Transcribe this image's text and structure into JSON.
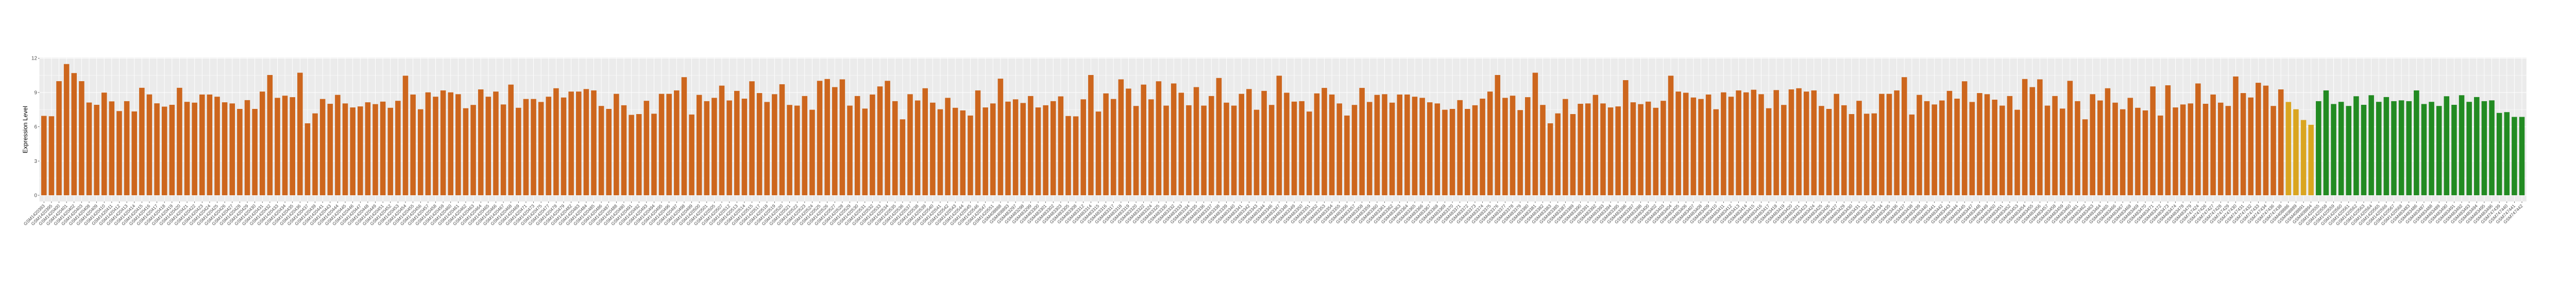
{
  "chart_data": {
    "type": "bar",
    "title": "",
    "xlabel": "",
    "ylabel": "Expression Level",
    "ylim": [
      -0.55,
      12.06
    ],
    "y_ticks": [
      "0",
      "3",
      "6",
      "9",
      "12"
    ],
    "y_tick_values": [
      0,
      3,
      6,
      9,
      12
    ],
    "y_minor_values": [
      1.5,
      4.5,
      7.5,
      10.5
    ],
    "grid": true,
    "panel_background": "#EBEBEB",
    "legend": "none",
    "groups": [
      {
        "color": "#CD661D",
        "categories": [
          "GSM1420393",
          "GSM1420395",
          "GSM1420400",
          "GSM1420401",
          "GSM1420402",
          "GSM1420403",
          "GSM1420408",
          "GSM1420409",
          "GSM1420410",
          "GSM1420411",
          "GSM1420412",
          "GSM1420413",
          "GSM1420414",
          "GSM1420415",
          "GSM1420416",
          "GSM1420417",
          "GSM1420418",
          "GSM1420419",
          "GSM1420420",
          "GSM1420421",
          "GSM1420422",
          "GSM1420423",
          "GSM1420424",
          "GSM1420425",
          "GSM1420426",
          "GSM1420427",
          "GSM1420428",
          "GSM1420429",
          "GSM1420430",
          "GSM1420431",
          "GSM1420432",
          "GSM1420433",
          "GSM1420434",
          "GSM1420435",
          "GSM1420436",
          "GSM1420437",
          "GSM1420439",
          "GSM1420441",
          "GSM1420443",
          "GSM1420444",
          "GSM1420445",
          "GSM1420446",
          "GSM1420447",
          "GSM1420448",
          "GSM1420449",
          "GSM1420451",
          "GSM1420452",
          "GSM1420453",
          "GSM1420454",
          "GSM1420455",
          "GSM1420456",
          "GSM1420457",
          "GSM1420458",
          "GSM1420459",
          "GSM1420460",
          "GSM1420461",
          "GSM1420462",
          "GSM1420463",
          "GSM1420464",
          "GSM1420465",
          "GSM1420466",
          "GSM1420467",
          "GSM1420468",
          "GSM1420469",
          "GSM1420471",
          "GSM1420473",
          "GSM1420475",
          "GSM1420477",
          "GSM1420478",
          "GSM1420479",
          "GSM1420482",
          "GSM1420483",
          "GSM1420484",
          "GSM1420485",
          "GSM1420486",
          "GSM1420487",
          "GSM1420488",
          "GSM1420490",
          "GSM1420491",
          "GSM1420492",
          "GSM1420493",
          "GSM1420494",
          "GSM1420495",
          "GSM1420496",
          "GSM1420497",
          "GSM1420498",
          "GSM1420499",
          "GSM1420500",
          "GSM1420501",
          "GSM1420505",
          "GSM1420507",
          "GSM1420512",
          "GSM1420513",
          "GSM1420514",
          "GSM1420515",
          "GSM1420517",
          "GSM1420518",
          "GSM1420519",
          "GSM1420520",
          "GSM1420521",
          "GSM1420522",
          "GSM1420523",
          "GSM1420524",
          "GSM1420525",
          "GSM1420526",
          "GSM1420527",
          "GSM1420528",
          "GSM1420529",
          "GSM1420530",
          "GSM1420531",
          "GSM1420532",
          "GSM1420533",
          "GSM1420534",
          "GSM1420535",
          "GSM1420536",
          "GSM1420537",
          "GSM1420538",
          "GSM1420539",
          "GSM1420540",
          "GSM1420541",
          "GSM1420542",
          "GSM1420543",
          "GSM1420544",
          "GSM1420545",
          "GSM1420546",
          "GSM1420547",
          "GSM1420551",
          "GSM408888",
          "GSM408893",
          "GSM483297",
          "GSM483298",
          "GSM483299",
          "GSM483300",
          "GSM483301",
          "GSM483302",
          "GSM483303",
          "GSM483305",
          "GSM483308",
          "GSM483312",
          "GSM483314",
          "GSM483315",
          "GSM483316",
          "GSM483317",
          "GSM483318",
          "GSM483319",
          "GSM483320",
          "GSM483322",
          "GSM483324",
          "GSM483325",
          "GSM483330",
          "GSM483332",
          "GSM483333",
          "GSM483334",
          "GSM483335",
          "GSM483336",
          "GSM483337",
          "GSM483338",
          "GSM483339",
          "GSM483340",
          "GSM483341",
          "GSM483342",
          "GSM483343",
          "GSM483344",
          "GSM483346",
          "GSM483347",
          "GSM483348",
          "GSM483349",
          "GSM483350",
          "GSM483351",
          "GSM483352",
          "GSM483353",
          "GSM483354",
          "GSM483355",
          "GSM483356",
          "GSM483357",
          "GSM483358",
          "GSM483359",
          "GSM483360",
          "GSM483361",
          "GSM483362",
          "GSM483363",
          "GSM483364",
          "GSM483365",
          "GSM483366",
          "GSM483367",
          "GSM483368",
          "GSM483369",
          "GSM483370",
          "GSM483371",
          "GSM483372",
          "GSM483373",
          "GSM483374",
          "GSM483375",
          "GSM483376",
          "GSM483377",
          "GSM483378",
          "GSM483379",
          "GSM483380",
          "GSM483381",
          "GSM483382",
          "GSM483383",
          "GSM483385",
          "GSM483387",
          "GSM483389",
          "GSM483390",
          "GSM483391",
          "GSM483392",
          "GSM483393",
          "GSM483394",
          "GSM483395",
          "GSM483396",
          "GSM483397",
          "GSM483398",
          "GSM483400",
          "GSM483402",
          "GSM483403",
          "GSM483404",
          "GSM483405",
          "GSM483406",
          "GSM483407",
          "GSM483408",
          "GSM483409",
          "GSM483410",
          "GSM483411",
          "GSM483412",
          "GSM483413",
          "GSM483414",
          "GSM483415",
          "GSM483416",
          "GSM483417",
          "GSM483418",
          "GSM483419",
          "GSM483420",
          "GSM483421",
          "GSM483423",
          "GSM483424",
          "GSM483425",
          "GSM483426",
          "GSM483427",
          "GSM483429",
          "GSM483430",
          "GSM483431",
          "GSM483432",
          "GSM483433",
          "GSM483434",
          "GSM483435",
          "GSM483436",
          "GSM483437",
          "GSM483438",
          "GSM483439",
          "GSM483440",
          "GSM483441",
          "GSM483442",
          "GSM483443",
          "GSM483444",
          "GSM483445",
          "GSM483447",
          "GSM483448",
          "GSM483449",
          "GSM483450",
          "GSM483451",
          "GSM483452",
          "GSM483453",
          "GSM483454",
          "GSM483455",
          "GSM483456",
          "GSM483457",
          "GSM483458",
          "GSM483459",
          "GSM483460",
          "GSM483461",
          "GSM483462",
          "GSM483463",
          "GSM483464",
          "GSM483465",
          "GSM483466",
          "GSM483467",
          "GSM483468",
          "GSM483469",
          "GSM483470",
          "GSM483471",
          "GSM483472",
          "GSM483473",
          "GSM483474",
          "GSM483478",
          "GSM483479",
          "GSM747424",
          "GSM747426",
          "GSM747427",
          "GSM747428",
          "GSM747429",
          "GSM747430",
          "GSM747431",
          "GSM747432",
          "GSM747433",
          "GSM747434",
          "GSM747436",
          "GSM747438"
        ],
        "values": [
          6.95,
          6.92,
          9.99,
          11.49,
          10.7,
          9.99,
          8.12,
          7.92,
          8.99,
          8.22,
          7.37,
          8.24,
          7.34,
          9.41,
          8.83,
          8.05,
          7.76,
          7.92,
          9.41,
          8.18,
          8.11,
          8.82,
          8.82,
          8.63,
          8.14,
          8.04,
          7.56,
          8.33,
          7.56,
          9.08,
          10.53,
          8.53,
          8.72,
          8.59,
          10.73,
          6.3,
          7.17,
          8.43,
          8.01,
          8.79,
          8.04,
          7.69,
          7.78,
          8.14,
          7.98,
          8.2,
          7.66,
          8.27,
          10.47,
          8.82,
          7.53,
          9.01,
          8.63,
          9.18,
          9.01,
          8.85,
          7.62,
          7.91,
          9.27,
          8.63,
          9.08,
          7.95,
          9.69,
          7.66,
          8.43,
          8.43,
          8.17,
          8.63,
          9.37,
          8.56,
          9.08,
          9.08,
          9.3,
          9.18,
          7.82,
          7.56,
          8.88,
          7.88,
          7.04,
          7.11,
          8.27,
          7.14,
          8.88,
          8.88,
          9.18,
          10.34,
          7.07,
          8.79,
          8.24,
          8.53,
          9.6,
          8.3,
          9.14,
          8.46,
          9.98,
          8.95,
          8.17,
          8.85,
          9.72,
          7.91,
          7.85,
          8.69,
          7.49,
          10.02,
          10.18,
          9.47,
          10.15,
          7.85,
          8.69,
          7.59,
          8.82,
          9.53,
          10.02,
          8.24,
          6.65,
          8.85,
          8.3,
          9.37,
          8.11,
          7.53,
          8.53,
          7.66,
          7.43,
          6.98,
          9.18,
          7.69,
          8.04,
          10.21,
          8.2,
          8.4,
          8.08,
          8.69,
          7.69,
          7.88,
          8.24,
          8.66,
          6.94,
          6.91,
          8.4,
          10.53,
          7.33,
          8.92,
          8.43,
          10.15,
          9.34,
          7.82,
          9.69,
          8.4,
          9.98,
          7.85,
          9.79,
          8.98,
          7.88,
          9.47,
          7.85,
          8.69,
          10.27,
          8.11,
          7.85,
          8.88,
          9.3,
          7.49,
          9.14,
          7.91,
          10.47,
          8.98,
          8.2,
          8.24,
          7.33,
          8.92,
          9.4,
          8.82,
          8.04,
          6.98,
          7.91,
          9.4,
          8.17,
          8.79,
          8.85,
          8.11,
          8.82,
          8.82,
          8.63,
          8.53,
          8.14,
          8.04,
          7.49,
          7.56,
          8.33,
          7.56,
          7.88,
          8.46,
          9.08,
          10.53,
          8.53,
          8.72,
          7.46,
          8.59,
          10.73,
          7.91,
          6.3,
          7.17,
          8.43,
          7.11,
          8.01,
          8.04,
          8.79,
          8.04,
          7.69,
          7.78,
          10.08,
          8.14,
          7.98,
          8.2,
          7.66,
          8.27,
          10.47,
          9.08,
          8.98,
          8.56,
          8.43,
          8.82,
          7.53,
          9.01,
          8.63,
          9.18,
          9.01,
          9.24,
          8.85,
          7.62,
          9.21,
          7.91,
          9.27,
          9.37,
          9.08,
          9.18,
          7.82,
          7.56,
          8.88,
          7.88,
          7.11,
          8.27,
          7.14,
          7.17,
          8.88,
          8.88,
          9.18,
          10.34,
          7.07,
          8.79,
          8.24,
          7.95,
          8.3,
          9.14,
          8.46,
          9.98,
          8.17,
          8.95,
          8.85,
          8.37,
          7.85,
          8.69,
          7.49,
          10.18,
          9.47,
          10.15,
          7.85,
          8.69,
          7.59,
          10.02,
          8.24,
          6.65,
          8.85,
          8.3,
          9.37,
          8.11,
          7.53,
          8.53,
          7.66,
          7.43,
          9.53,
          6.98,
          9.63,
          7.69,
          7.95,
          8.04,
          9.79,
          8.01,
          8.82,
          8.11,
          7.82,
          10.4,
          8.95,
          8.56,
          9.85,
          9.6,
          7.82,
          9.27
        ]
      },
      {
        "color": "#DAA520",
        "categories": [
          "GSM408886",
          "GSM408889",
          "GSM408891",
          "GSM408894"
        ],
        "values": [
          8.17,
          7.53,
          6.59,
          6.17
        ]
      },
      {
        "color": "#228B22",
        "categories": [
          "GSM1420555",
          "GSM1420558",
          "GSM1420559",
          "GSM1420560",
          "GSM1420561",
          "GSM1420562",
          "GSM1420563",
          "GSM1420564",
          "GSM1420565",
          "GSM1420566",
          "GSM1420567",
          "GSM1420568",
          "GSM483483",
          "GSM483486",
          "GSM483487",
          "GSM483488",
          "GSM483489",
          "GSM483490",
          "GSM483491",
          "GSM483492",
          "GSM483493",
          "GSM483494",
          "GSM483495",
          "GSM483496",
          "GSM747439",
          "GSM747440",
          "GSM747441",
          "GSM747442"
        ],
        "values": [
          8.24,
          9.18,
          7.99,
          8.18,
          7.82,
          8.67,
          7.92,
          8.76,
          8.18,
          8.6,
          8.24,
          8.31,
          8.24,
          9.18,
          7.99,
          8.18,
          7.82,
          8.67,
          7.92,
          8.76,
          8.18,
          8.6,
          8.24,
          8.31,
          7.21,
          7.28,
          6.86,
          6.86
        ]
      }
    ]
  }
}
